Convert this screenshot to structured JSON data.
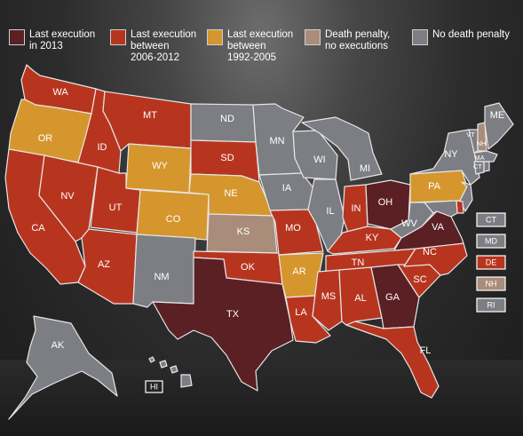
{
  "colors": {
    "exec_2013": "#5b2024",
    "exec_2006_2012": "#b7351f",
    "exec_1992_2005": "#d5962e",
    "no_exec": "#a98c7a",
    "no_penalty": "#7c7e83"
  },
  "legend": [
    {
      "key": "exec_2013",
      "label": "Last execution\nin 2013"
    },
    {
      "key": "exec_2006_2012",
      "label": "Last execution\nbetween\n2006-2012"
    },
    {
      "key": "exec_1992_2005",
      "label": "Last execution\nbetween\n1992-2005"
    },
    {
      "key": "no_exec",
      "label": "Death penalty,\nno executions"
    },
    {
      "key": "no_penalty",
      "label": "No death penalty"
    }
  ],
  "states": [
    {
      "abbr": "WA",
      "category": "exec_2006_2012"
    },
    {
      "abbr": "OR",
      "category": "exec_1992_2005"
    },
    {
      "abbr": "CA",
      "category": "exec_2006_2012"
    },
    {
      "abbr": "ID",
      "category": "exec_2006_2012"
    },
    {
      "abbr": "NV",
      "category": "exec_2006_2012"
    },
    {
      "abbr": "MT",
      "category": "exec_2006_2012"
    },
    {
      "abbr": "WY",
      "category": "exec_1992_2005"
    },
    {
      "abbr": "UT",
      "category": "exec_2006_2012"
    },
    {
      "abbr": "AZ",
      "category": "exec_2006_2012"
    },
    {
      "abbr": "CO",
      "category": "exec_1992_2005"
    },
    {
      "abbr": "NM",
      "category": "no_penalty"
    },
    {
      "abbr": "ND",
      "category": "no_penalty"
    },
    {
      "abbr": "SD",
      "category": "exec_2006_2012"
    },
    {
      "abbr": "NE",
      "category": "exec_1992_2005"
    },
    {
      "abbr": "KS",
      "category": "no_exec"
    },
    {
      "abbr": "OK",
      "category": "exec_2006_2012"
    },
    {
      "abbr": "TX",
      "category": "exec_2013"
    },
    {
      "abbr": "MN",
      "category": "no_penalty"
    },
    {
      "abbr": "IA",
      "category": "no_penalty"
    },
    {
      "abbr": "MO",
      "category": "exec_2006_2012"
    },
    {
      "abbr": "AR",
      "category": "exec_1992_2005"
    },
    {
      "abbr": "LA",
      "category": "exec_2006_2012"
    },
    {
      "abbr": "WI",
      "category": "no_penalty"
    },
    {
      "abbr": "IL",
      "category": "no_penalty"
    },
    {
      "abbr": "MI",
      "category": "no_penalty"
    },
    {
      "abbr": "IN",
      "category": "exec_2006_2012"
    },
    {
      "abbr": "OH",
      "category": "exec_2013"
    },
    {
      "abbr": "KY",
      "category": "exec_2006_2012"
    },
    {
      "abbr": "TN",
      "category": "exec_2006_2012"
    },
    {
      "abbr": "MS",
      "category": "exec_2006_2012"
    },
    {
      "abbr": "AL",
      "category": "exec_2006_2012"
    },
    {
      "abbr": "GA",
      "category": "exec_2013"
    },
    {
      "abbr": "FL",
      "category": "exec_2006_2012"
    },
    {
      "abbr": "SC",
      "category": "exec_2006_2012"
    },
    {
      "abbr": "NC",
      "category": "exec_2006_2012"
    },
    {
      "abbr": "VA",
      "category": "exec_2013"
    },
    {
      "abbr": "WV",
      "category": "no_penalty"
    },
    {
      "abbr": "PA",
      "category": "exec_1992_2005"
    },
    {
      "abbr": "NY",
      "category": "no_penalty"
    },
    {
      "abbr": "VT",
      "category": "no_penalty"
    },
    {
      "abbr": "NH",
      "category": "no_exec"
    },
    {
      "abbr": "ME",
      "category": "no_penalty"
    },
    {
      "abbr": "MA",
      "category": "no_penalty"
    },
    {
      "abbr": "CT",
      "category": "no_penalty"
    },
    {
      "abbr": "RI",
      "category": "no_penalty"
    },
    {
      "abbr": "NJ",
      "category": "no_penalty"
    },
    {
      "abbr": "DE",
      "category": "exec_2006_2012"
    },
    {
      "abbr": "MD",
      "category": "no_penalty"
    },
    {
      "abbr": "AK",
      "category": "no_penalty"
    },
    {
      "abbr": "HI",
      "category": "no_penalty"
    }
  ],
  "small_state_boxes": [
    {
      "abbr": "CT",
      "category": "no_penalty"
    },
    {
      "abbr": "MD",
      "category": "no_penalty"
    },
    {
      "abbr": "DE",
      "category": "exec_2006_2012"
    },
    {
      "abbr": "NH",
      "category": "no_exec"
    },
    {
      "abbr": "RI",
      "category": "no_penalty"
    }
  ]
}
